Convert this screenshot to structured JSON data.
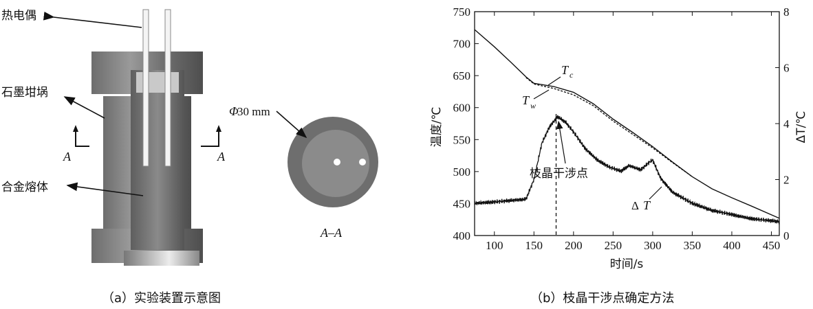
{
  "panel_a": {
    "labels": {
      "thermocouple": "热电偶",
      "crucible": "石墨坩埚",
      "melt": "合金熔体"
    },
    "section_marker": "A",
    "diameter_label_prefix": "Φ",
    "diameter_label_rest": "30 mm",
    "section_view_label": "A–A",
    "caption": "（a）实验装置示意图"
  },
  "panel_b": {
    "caption": "（b）枝晶干涉点确定方法",
    "annotations": {
      "tc_main": "T",
      "tc_sub": "c",
      "tw_main": "T",
      "tw_sub": "w",
      "dendrite_point": "枝晶干涉点",
      "delta_t_symbol": "Δ",
      "delta_t_main": "T"
    },
    "left_axis_label": "温度/℃",
    "right_axis_label": "ΔT/℃",
    "x_axis_label": "时间/s"
  },
  "chart_data": {
    "type": "line",
    "x_axis": {
      "label": "时间/s",
      "range": [
        75,
        460
      ],
      "ticks": [
        100,
        150,
        200,
        250,
        300,
        350,
        400,
        450
      ]
    },
    "y_left": {
      "label": "温度/℃",
      "range": [
        400,
        750
      ],
      "ticks": [
        400,
        450,
        500,
        550,
        600,
        650,
        700,
        750
      ]
    },
    "y_right": {
      "label": "ΔT/℃",
      "range": [
        0,
        8
      ],
      "ticks": [
        0,
        2,
        4,
        6,
        8
      ]
    },
    "series": [
      {
        "name": "Tc",
        "axis": "left",
        "style": "solid",
        "points": [
          [
            75,
            722
          ],
          [
            100,
            695
          ],
          [
            120,
            672
          ],
          [
            140,
            648
          ],
          [
            150,
            638
          ],
          [
            160,
            636
          ],
          [
            175,
            633
          ],
          [
            200,
            624
          ],
          [
            225,
            606
          ],
          [
            250,
            582
          ],
          [
            275,
            561
          ],
          [
            300,
            539
          ],
          [
            325,
            515
          ],
          [
            350,
            492
          ],
          [
            375,
            473
          ],
          [
            400,
            459
          ],
          [
            425,
            446
          ],
          [
            460,
            427
          ]
        ]
      },
      {
        "name": "Tw",
        "axis": "left",
        "style": "dashed",
        "points": [
          [
            140,
            647
          ],
          [
            150,
            637
          ],
          [
            160,
            634
          ],
          [
            175,
            630
          ],
          [
            200,
            620
          ],
          [
            225,
            603
          ],
          [
            250,
            579
          ],
          [
            275,
            558
          ],
          [
            300,
            537
          ],
          [
            325,
            514
          ],
          [
            350,
            492
          ]
        ]
      },
      {
        "name": "ΔT",
        "axis": "right",
        "points": [
          [
            75,
            1.15
          ],
          [
            100,
            1.2
          ],
          [
            120,
            1.25
          ],
          [
            140,
            1.3
          ],
          [
            150,
            2.0
          ],
          [
            160,
            3.3
          ],
          [
            170,
            3.9
          ],
          [
            180,
            4.25
          ],
          [
            190,
            4.05
          ],
          [
            200,
            3.7
          ],
          [
            215,
            3.1
          ],
          [
            230,
            2.7
          ],
          [
            245,
            2.45
          ],
          [
            260,
            2.3
          ],
          [
            270,
            2.5
          ],
          [
            285,
            2.35
          ],
          [
            295,
            2.6
          ],
          [
            300,
            2.7
          ],
          [
            310,
            2.05
          ],
          [
            325,
            1.55
          ],
          [
            350,
            1.15
          ],
          [
            375,
            0.9
          ],
          [
            400,
            0.75
          ],
          [
            425,
            0.6
          ],
          [
            460,
            0.5
          ]
        ]
      }
    ],
    "marker_line_x": 178
  }
}
